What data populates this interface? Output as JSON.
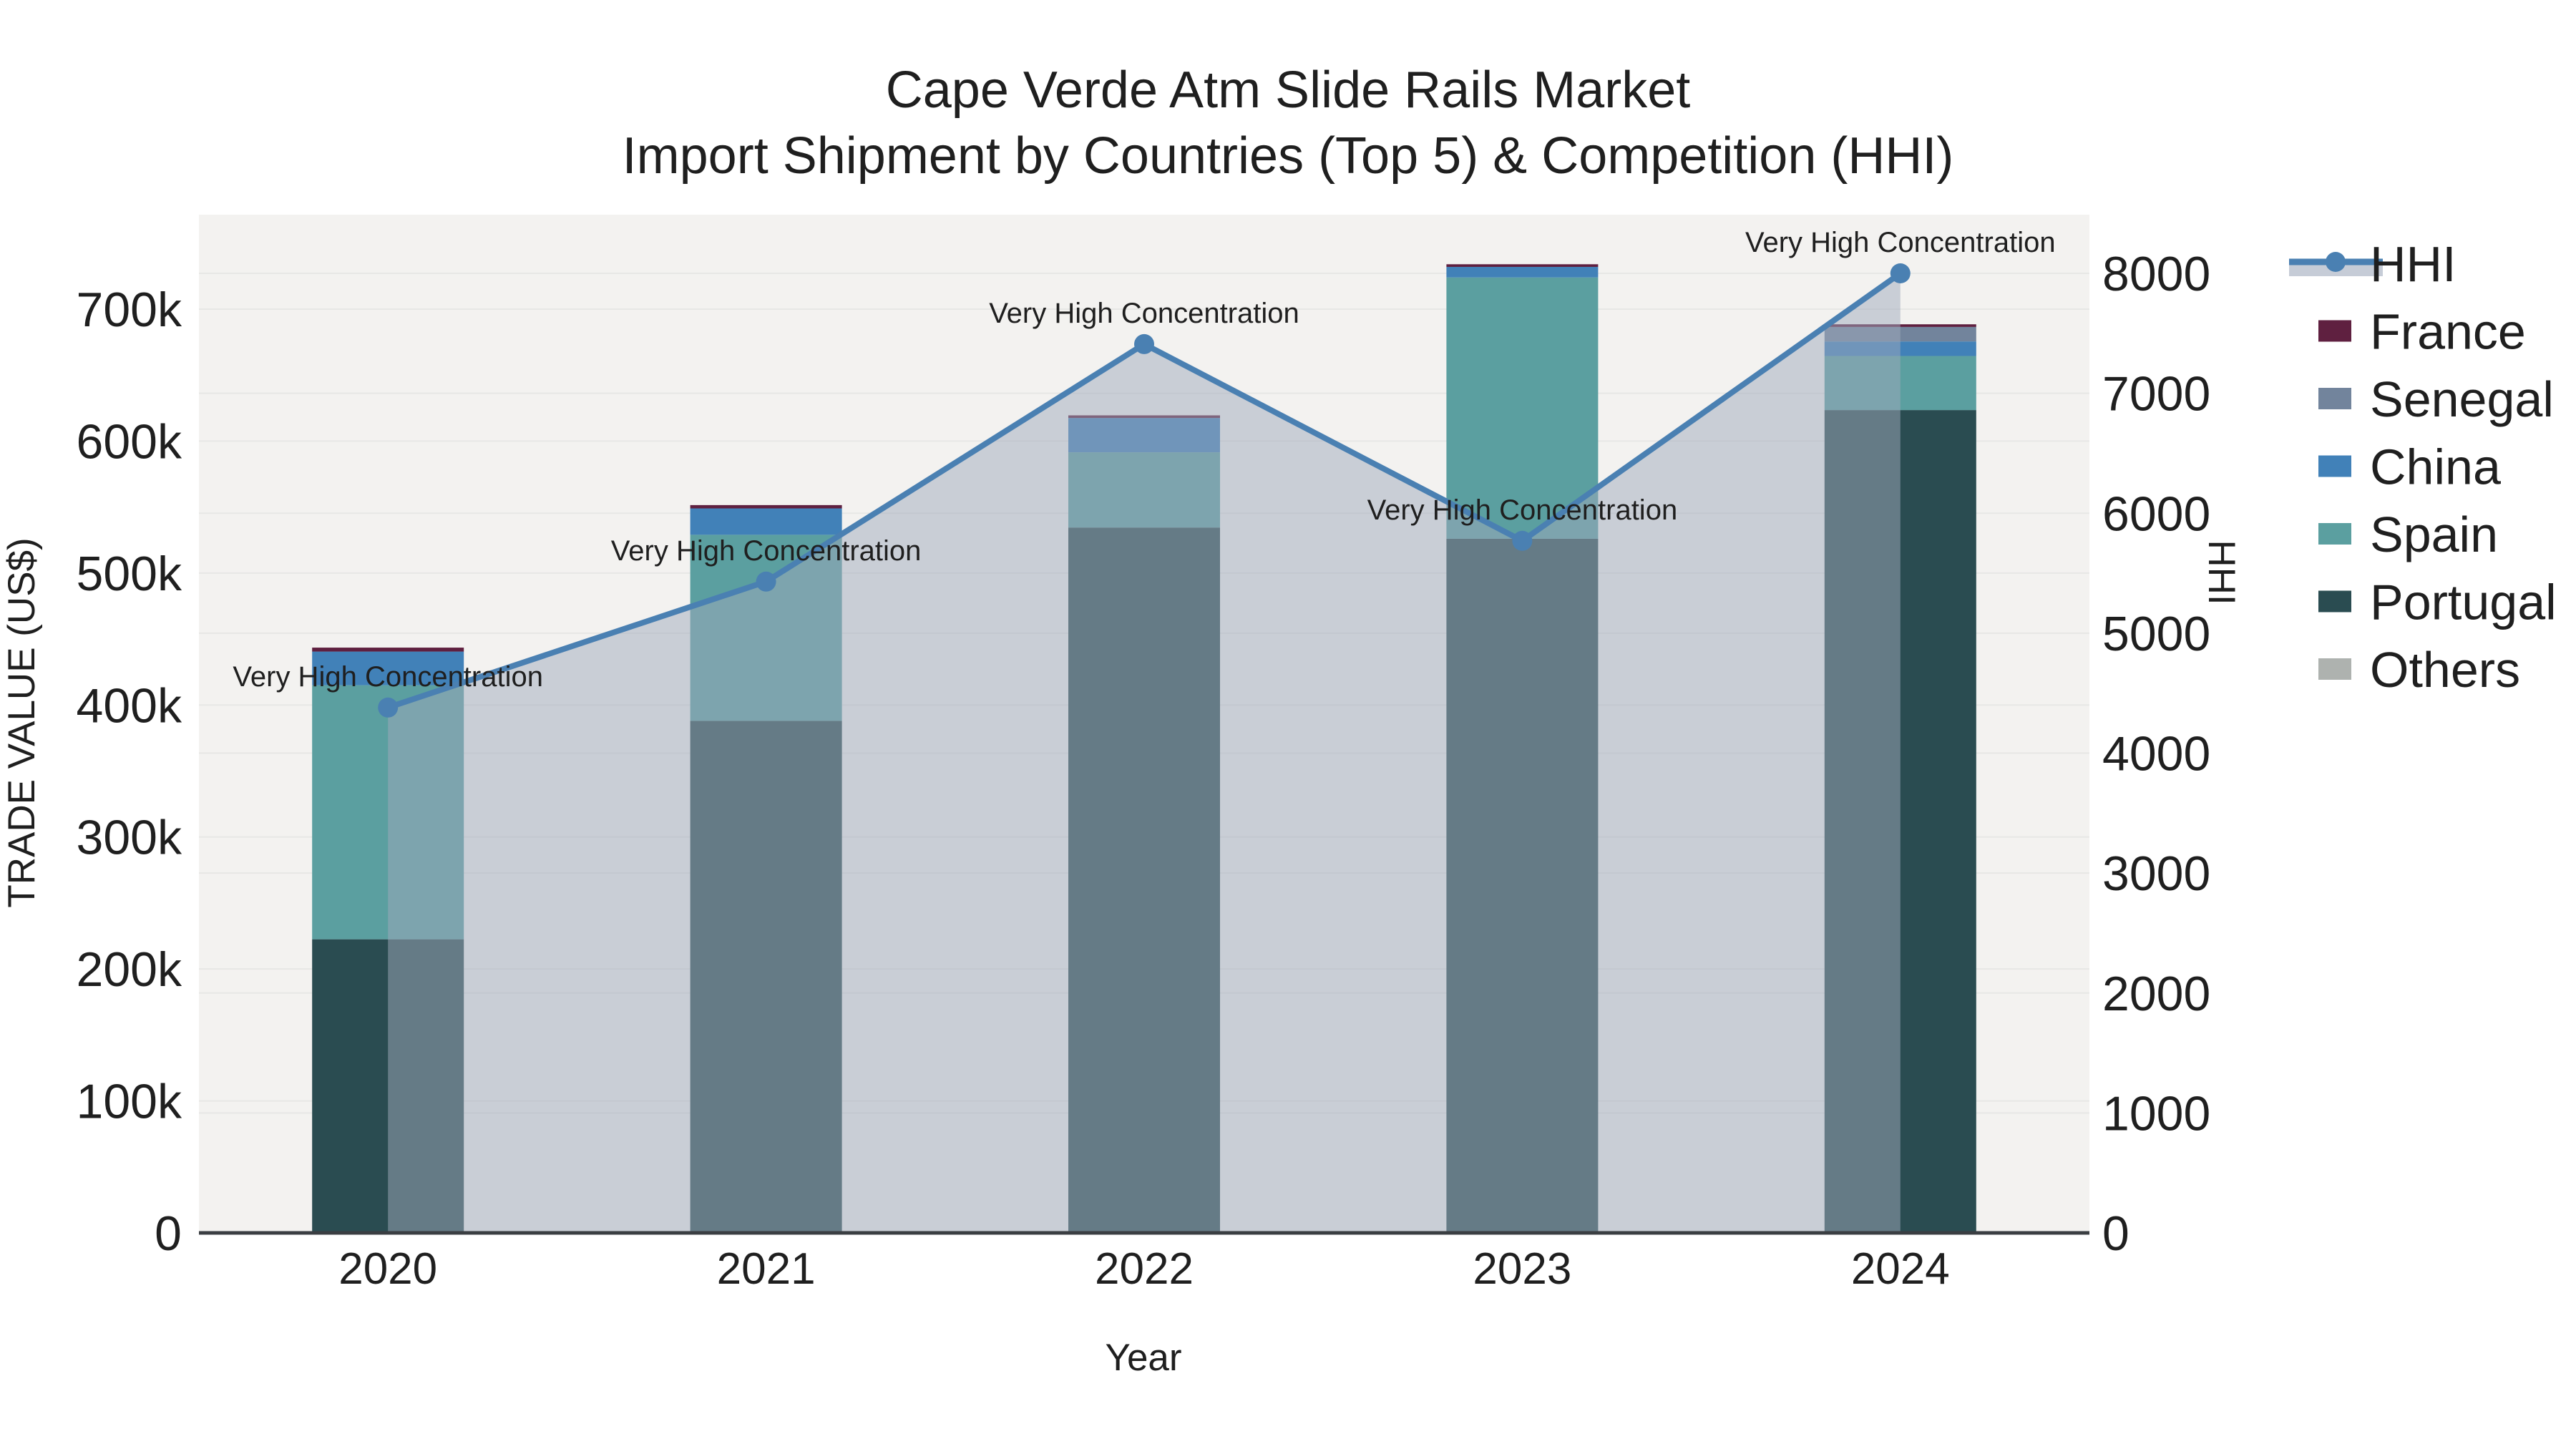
{
  "chart_data": {
    "type": "combo-stacked-bar-and-line",
    "title": "Cape Verde Atm Slide Rails Market",
    "subtitle": "Import Shipment by Countries (Top 5) & Competition (HHI)",
    "categories": [
      "2020",
      "2021",
      "2022",
      "2023",
      "2024"
    ],
    "bar_unit": "US$",
    "bar_series": [
      {
        "name": "Portugal",
        "color": "#2A4C51",
        "values_usd": [
          222500,
          388000,
          534500,
          526000,
          623500
        ]
      },
      {
        "name": "Spain",
        "color": "#5B9FA0",
        "values_usd": [
          192500,
          141000,
          57000,
          198000,
          41000
        ]
      },
      {
        "name": "China",
        "color": "#4181B8",
        "values_usd": [
          25500,
          20000,
          26000,
          8000,
          11000
        ]
      },
      {
        "name": "Senegal",
        "color": "#72849C",
        "values_usd": [
          0,
          0,
          0,
          0,
          11000
        ]
      },
      {
        "name": "France",
        "color": "#5F2040",
        "values_usd": [
          3000,
          2500,
          2000,
          2000,
          2000
        ]
      },
      {
        "name": "Others",
        "color": "#AEB2AF",
        "values_usd": [
          0,
          0,
          0,
          0,
          0
        ]
      }
    ],
    "line_series": {
      "name": "HHI",
      "color": "#4A80B2",
      "area_fill": "#A0AABC",
      "area_opacity": 0.5,
      "values": [
        4380,
        5430,
        7410,
        5770,
        8000
      ]
    },
    "annotations": [
      {
        "x": "2020",
        "text": "Very High Concentration"
      },
      {
        "x": "2021",
        "text": "Very High Concentration"
      },
      {
        "x": "2022",
        "text": "Very High Concentration"
      },
      {
        "x": "2023",
        "text": "Very High Concentration"
      },
      {
        "x": "2024",
        "text": "Very High Concentration"
      }
    ],
    "axes": {
      "left": {
        "title": "TRADE VALUE (US$)",
        "tick_labels": [
          "0",
          "100k",
          "200k",
          "300k",
          "400k",
          "500k",
          "600k",
          "700k"
        ],
        "tick_values": [
          0,
          100000,
          200000,
          300000,
          400000,
          500000,
          600000,
          700000
        ],
        "range": [
          0,
          771600
        ]
      },
      "right": {
        "title": "HHI",
        "tick_labels": [
          "0",
          "1000",
          "2000",
          "3000",
          "4000",
          "5000",
          "6000",
          "7000",
          "8000"
        ],
        "tick_values": [
          0,
          1000,
          2000,
          3000,
          4000,
          5000,
          6000,
          7000,
          8000
        ],
        "range": [
          0,
          8000
        ]
      },
      "x": {
        "title": "Year",
        "tick_labels": [
          "2020",
          "2021",
          "2022",
          "2023",
          "2024"
        ]
      }
    },
    "legend": [
      {
        "label": "HHI",
        "type": "line",
        "color": "#4A80B2"
      },
      {
        "label": "France",
        "type": "square",
        "color": "#5F2040"
      },
      {
        "label": "Senegal",
        "type": "square",
        "color": "#72849C"
      },
      {
        "label": "China",
        "type": "square",
        "color": "#4181B8"
      },
      {
        "label": "Spain",
        "type": "square",
        "color": "#5B9FA0"
      },
      {
        "label": "Portugal",
        "type": "square",
        "color": "#2A4C51"
      },
      {
        "label": "Others",
        "type": "square",
        "color": "#AEB2AF"
      }
    ],
    "grid": true,
    "legend_position": "right",
    "colors": {
      "plot_background": "#F3F2F0",
      "gridline": "#E7E7E5",
      "axis_line": "#3A3E42",
      "text": "#1F1F1F"
    }
  }
}
